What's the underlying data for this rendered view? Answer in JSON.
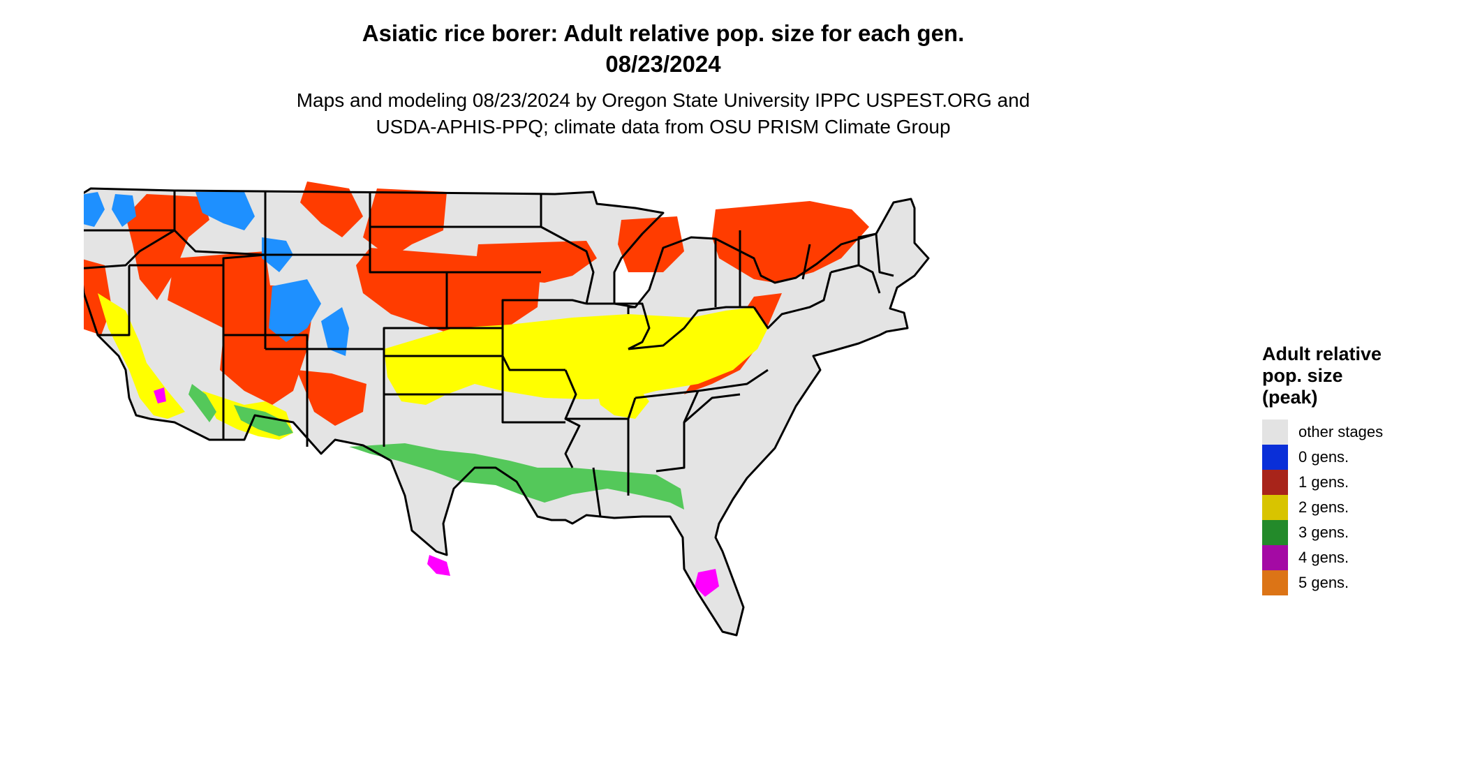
{
  "title": {
    "line1": "Asiatic rice borer: Adult relative pop. size for each gen.",
    "line2": "08/23/2024"
  },
  "subtitle": {
    "line1": "Maps and modeling 08/23/2024 by Oregon State University IPPC USPEST.ORG and",
    "line2": "USDA-APHIS-PPQ; climate data from OSU PRISM Climate Group"
  },
  "legend": {
    "title_lines": [
      "Adult relative",
      "pop. size",
      "(peak)"
    ],
    "items": [
      {
        "label": "other stages",
        "color": "#e3e3e3"
      },
      {
        "label": "0 gens.",
        "color": "#0a2fd8"
      },
      {
        "label": "1 gens.",
        "color": "#a8241a"
      },
      {
        "label": "2 gens.",
        "color": "#d8c400"
      },
      {
        "label": "3 gens.",
        "color": "#238a2a"
      },
      {
        "label": "4 gens.",
        "color": "#a40aa4"
      },
      {
        "label": "5 gens.",
        "color": "#dc7416"
      }
    ]
  },
  "map": {
    "base_color": "#e4e4e4",
    "border_color": "#000000",
    "zone_colors": {
      "gen0": "#1e90ff",
      "gen1": "#ff3c00",
      "gen2": "#ffff00",
      "gen3": "#54c85a",
      "gen4": "#ff00ff"
    }
  }
}
